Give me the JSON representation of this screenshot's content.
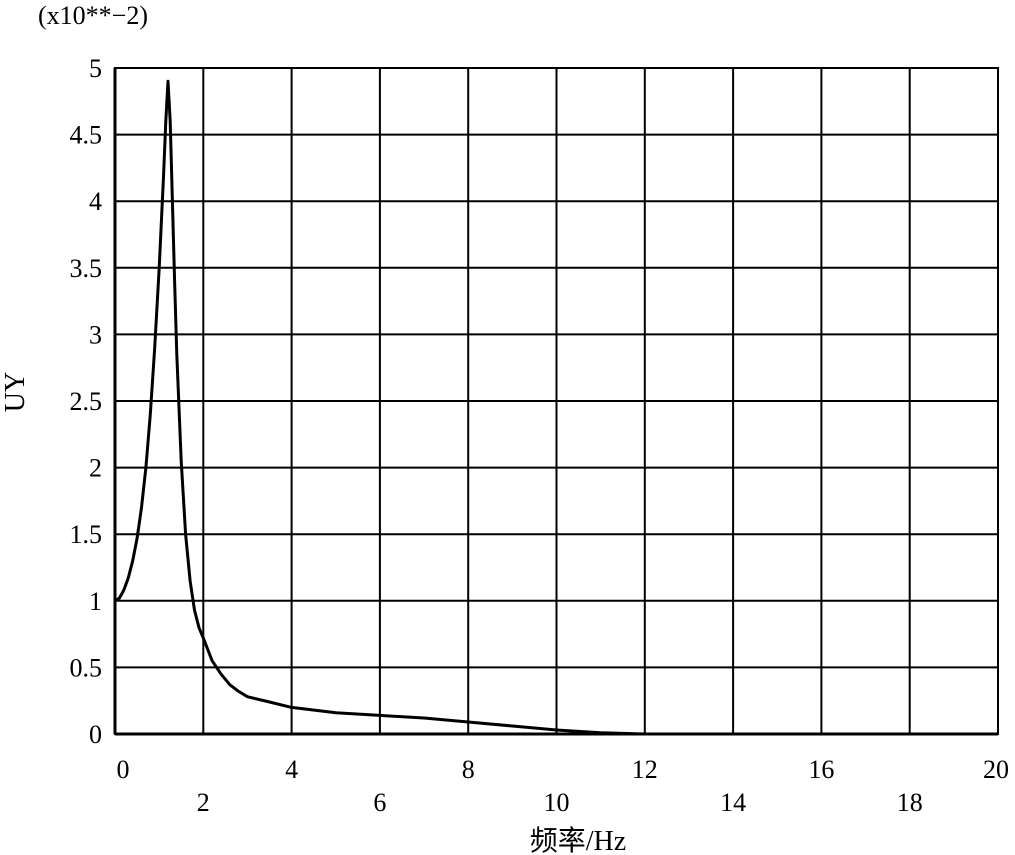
{
  "chart_data": {
    "type": "line",
    "title": "",
    "scale_note": "(x10**−2)",
    "xlabel": "频率/Hz",
    "ylabel": "UY",
    "xlim": [
      0,
      20
    ],
    "ylim": [
      0,
      5
    ],
    "grid": true,
    "x_ticks": [
      0,
      2,
      4,
      6,
      8,
      10,
      12,
      14,
      16,
      18,
      20
    ],
    "x_tick_labels": [
      "0",
      "2",
      "4",
      "6",
      "8",
      "10",
      "12",
      "14",
      "16",
      "18",
      "20"
    ],
    "y_ticks": [
      0,
      0.5,
      1,
      1.5,
      2,
      2.5,
      3,
      3.5,
      4,
      4.5,
      5
    ],
    "y_tick_labels": [
      "0",
      "0.5",
      "1",
      "1.5",
      "2",
      "2.5",
      "3",
      "3.5",
      "4",
      "4.5",
      "5"
    ],
    "series": [
      {
        "color": "#000000",
        "x": [
          0,
          0.1,
          0.2,
          0.3,
          0.4,
          0.5,
          0.6,
          0.7,
          0.8,
          0.9,
          1.0,
          1.1,
          1.15,
          1.2,
          1.25,
          1.3,
          1.35,
          1.4,
          1.5,
          1.6,
          1.7,
          1.8,
          1.9,
          2.0,
          2.2,
          2.4,
          2.6,
          2.8,
          3.0,
          3.5,
          4.0,
          5.0,
          6.0,
          7.0,
          8.0,
          9.0,
          10.0,
          11.0,
          12.0,
          14.0,
          16.0,
          18.0,
          20.0
        ],
        "y": [
          1.0,
          1.02,
          1.08,
          1.17,
          1.3,
          1.47,
          1.7,
          2.0,
          2.4,
          2.9,
          3.5,
          4.2,
          4.6,
          4.9,
          4.6,
          4.0,
          3.4,
          2.85,
          2.05,
          1.5,
          1.15,
          0.93,
          0.8,
          0.72,
          0.55,
          0.45,
          0.37,
          0.32,
          0.28,
          0.24,
          0.2,
          0.16,
          0.14,
          0.12,
          0.09,
          0.06,
          0.03,
          0.01,
          0.0,
          0.0,
          0.0,
          0.0,
          0.0
        ]
      }
    ]
  }
}
